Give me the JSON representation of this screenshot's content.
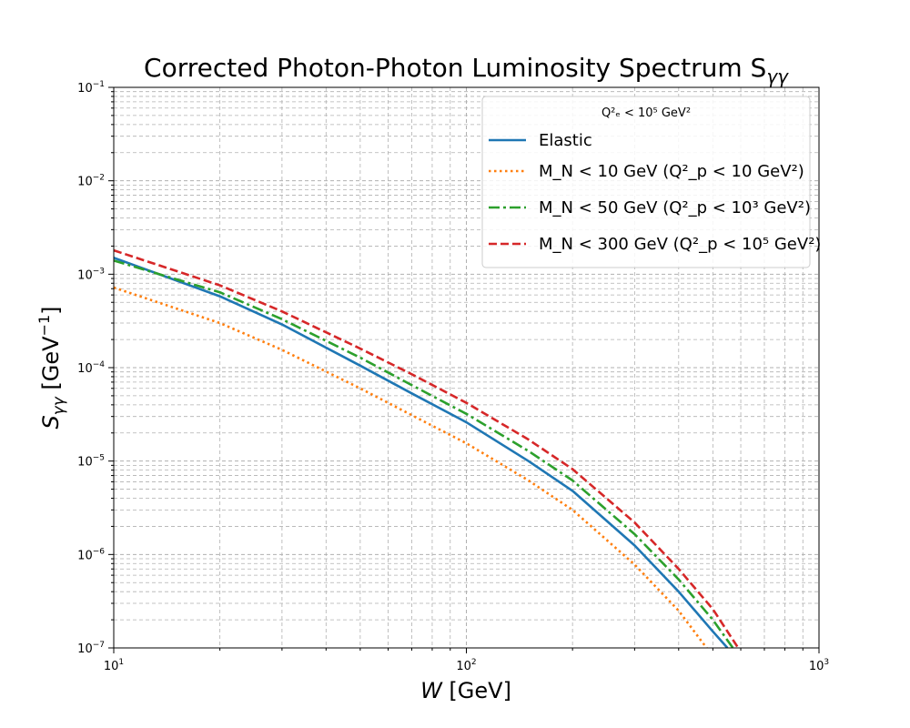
{
  "chart_data": {
    "type": "line",
    "title": "Corrected Photon-Photon Luminosity Spectrum S",
    "title_subscript": "γγ",
    "xlabel": "W",
    "xlabel_unit": " [GeV]",
    "ylabel": "S",
    "ylabel_subscript": "γγ",
    "ylabel_unit_open": " [GeV",
    "ylabel_unit_sup": "−1",
    "ylabel_unit_close": "]",
    "xscale": "log",
    "yscale": "log",
    "xlim": [
      10,
      1000
    ],
    "ylim": [
      1e-07,
      0.1
    ],
    "x_ticks": [
      {
        "value": 10,
        "base": "10",
        "exp": "1"
      },
      {
        "value": 100,
        "base": "10",
        "exp": "2"
      },
      {
        "value": 1000,
        "base": "10",
        "exp": "3"
      }
    ],
    "y_ticks": [
      {
        "value": 1e-07,
        "base": "10",
        "exp": "−7"
      },
      {
        "value": 1e-06,
        "base": "10",
        "exp": "−6"
      },
      {
        "value": 1e-05,
        "base": "10",
        "exp": "−5"
      },
      {
        "value": 0.0001,
        "base": "10",
        "exp": "−4"
      },
      {
        "value": 0.001,
        "base": "10",
        "exp": "−3"
      },
      {
        "value": 0.01,
        "base": "10",
        "exp": "−2"
      },
      {
        "value": 0.1,
        "base": "10",
        "exp": "−1"
      }
    ],
    "grid": true,
    "grid_minor": true,
    "legend_placement": "top-right",
    "legend_title": "Q²ₑ < 10⁵ GeV²",
    "series": [
      {
        "name": "Elastic",
        "color": "#1f77b4",
        "dash": "solid",
        "points": [
          [
            10,
            0.0015
          ],
          [
            20,
            0.00058
          ],
          [
            30,
            0.00029
          ],
          [
            50,
            0.000105
          ],
          [
            70,
            5.3e-05
          ],
          [
            100,
            2.6e-05
          ],
          [
            150,
            1e-05
          ],
          [
            200,
            4.8e-06
          ],
          [
            300,
            1.25e-06
          ],
          [
            400,
            4e-07
          ],
          [
            500,
            1.5e-07
          ],
          [
            550,
            1e-07
          ]
        ]
      },
      {
        "name": "M_N < 10 GeV (Q²_p < 10 GeV²)",
        "color": "#ff7f0e",
        "dash": "dotted",
        "points": [
          [
            10,
            0.00072
          ],
          [
            20,
            0.0003
          ],
          [
            30,
            0.000155
          ],
          [
            50,
            6e-05
          ],
          [
            70,
            3.1e-05
          ],
          [
            100,
            1.55e-05
          ],
          [
            150,
            6.2e-06
          ],
          [
            200,
            3e-06
          ],
          [
            300,
            7.8e-07
          ],
          [
            400,
            2.5e-07
          ],
          [
            480,
            1e-07
          ]
        ]
      },
      {
        "name": "M_N < 50 GeV (Q²_p < 10³ GeV²)",
        "color": "#2ca02c",
        "dash": "dashdot",
        "points": [
          [
            10,
            0.0014
          ],
          [
            20,
            0.00064
          ],
          [
            30,
            0.00033
          ],
          [
            50,
            0.000128
          ],
          [
            70,
            6.5e-05
          ],
          [
            100,
            3.2e-05
          ],
          [
            150,
            1.28e-05
          ],
          [
            200,
            6.2e-06
          ],
          [
            300,
            1.65e-06
          ],
          [
            400,
            5.4e-07
          ],
          [
            500,
            2e-07
          ],
          [
            570,
            1e-07
          ]
        ]
      },
      {
        "name": "M_N < 300 GeV (Q²_p < 10⁵ GeV²)",
        "color": "#d62728",
        "dash": "dashed",
        "points": [
          [
            10,
            0.0018
          ],
          [
            20,
            0.00076
          ],
          [
            30,
            0.0004
          ],
          [
            50,
            0.00016
          ],
          [
            70,
            8.5e-05
          ],
          [
            100,
            4.2e-05
          ],
          [
            150,
            1.7e-05
          ],
          [
            200,
            8.2e-06
          ],
          [
            300,
            2.2e-06
          ],
          [
            400,
            7e-07
          ],
          [
            500,
            2.6e-07
          ],
          [
            590,
            1e-07
          ]
        ]
      }
    ]
  }
}
